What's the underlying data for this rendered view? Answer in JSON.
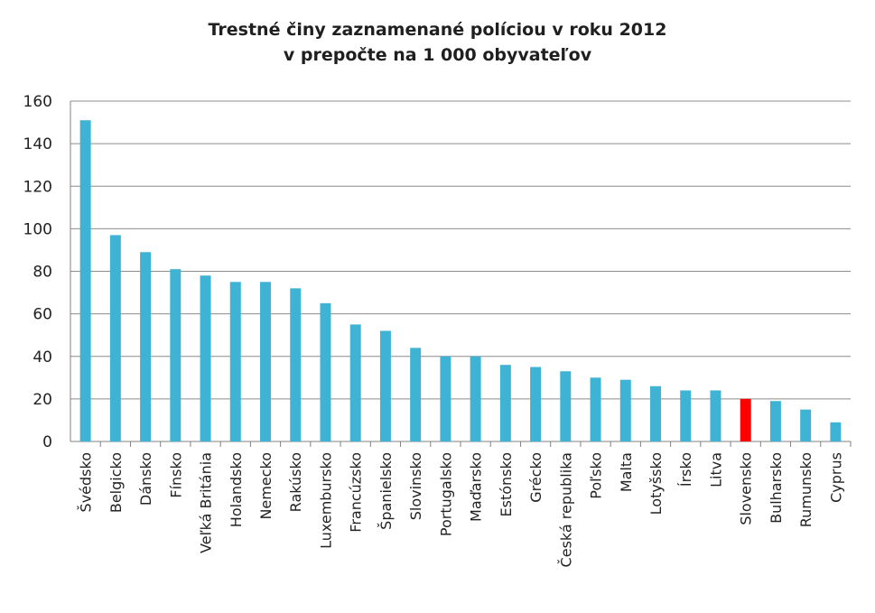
{
  "chart_data": {
    "type": "bar",
    "title": "Trestné činy zaznamenané políciou v roku 2012",
    "subtitle": "v prepočte na 1 000 obyvateľov",
    "xlabel": "",
    "ylabel": "",
    "ylim": [
      0,
      160
    ],
    "yticks": [
      "0",
      "20",
      "40",
      "60",
      "80",
      "100",
      "120",
      "140",
      "160"
    ],
    "grid": true,
    "legend": "none",
    "colors": {
      "bar": "#3fb3d3",
      "highlight": "#ff0000",
      "grid": "#8c8c8c"
    },
    "categories": [
      "Švédsko",
      "Belgicko",
      "Dánsko",
      "Fínsko",
      "Veľká Británia",
      "Holandsko",
      "Nemecko",
      "Rakúsko",
      "Luxembursko",
      "Francúzsko",
      "Španielsko",
      "Slovinsko",
      "Portugalsko",
      "Maďarsko",
      "Estónsko",
      "Grécko",
      "Česká republika",
      "Poľsko",
      "Malta",
      "Lotyšsko",
      "Írsko",
      "Litva",
      "Slovensko",
      "Bulharsko",
      "Rumunsko",
      "Cyprus"
    ],
    "values": [
      151,
      97,
      89,
      81,
      78,
      75,
      75,
      72,
      65,
      55,
      52,
      44,
      40,
      40,
      36,
      35,
      33,
      30,
      29,
      26,
      24,
      24,
      20,
      19,
      15,
      9
    ],
    "highlight_category": "Slovensko"
  }
}
